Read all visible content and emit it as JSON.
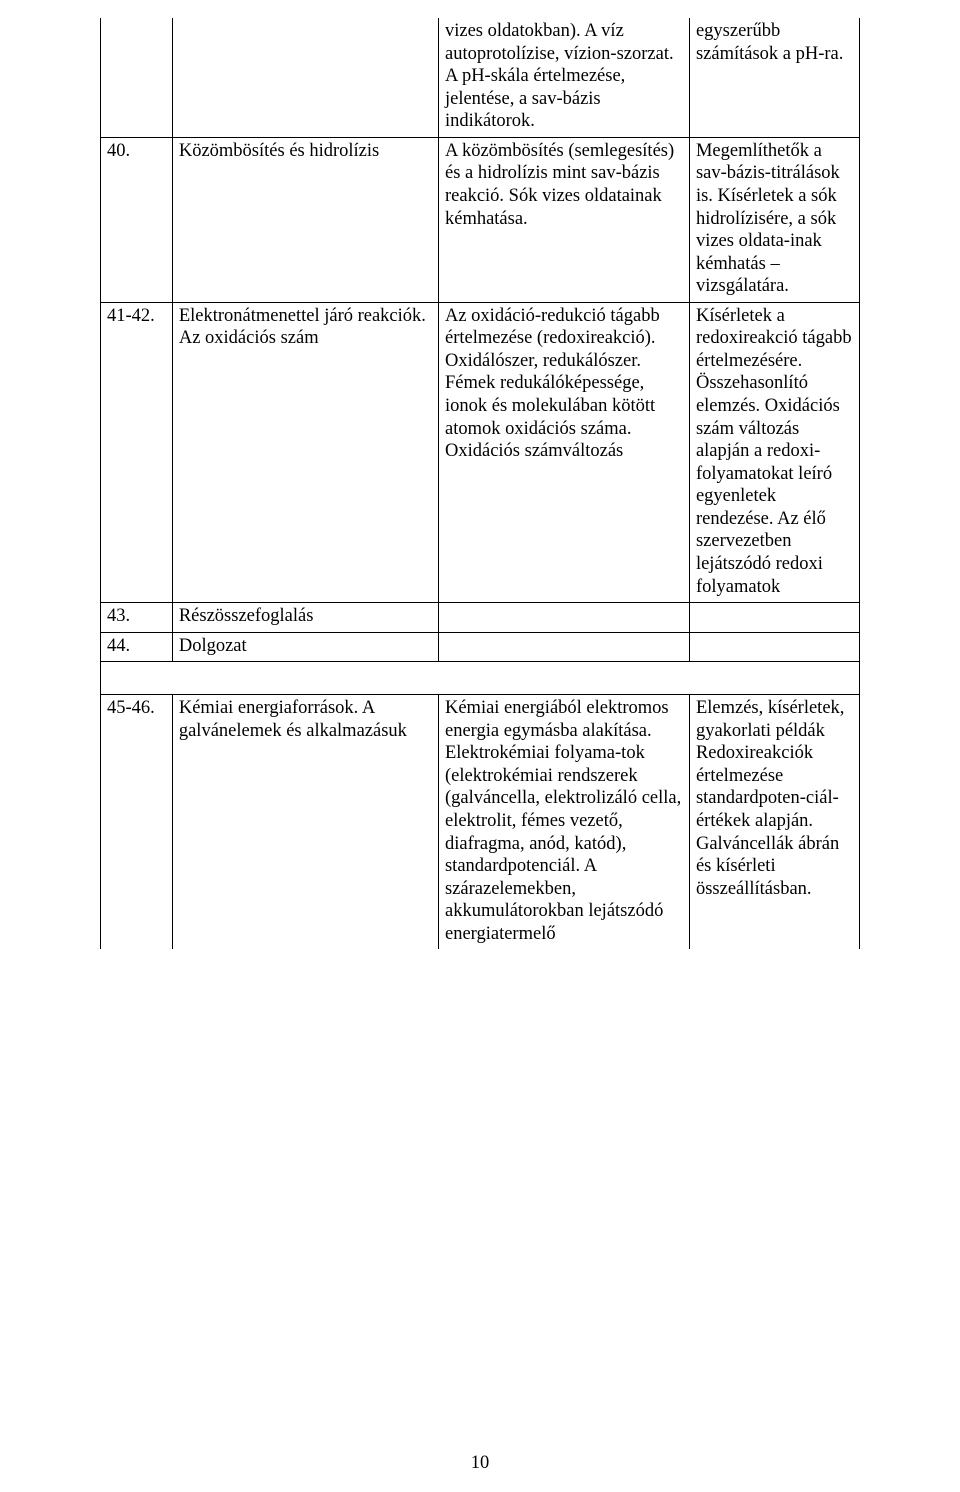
{
  "rows": {
    "r0": {
      "num": "",
      "topic": "",
      "desc": "vizes oldatokban). A víz autoprotolízise, vízion-szorzat.\nA pH-skála értelmezése, jelentése, a sav-bázis indikátorok.",
      "notes": "egyszerűbb számítások a pH-ra."
    },
    "r1": {
      "num": "40.",
      "topic": "Közömbösítés és hidrolízis",
      "desc": "A közömbösítés (semlegesítés) és a hidrolízis  mint sav-bázis reakció. Sók vizes oldatainak kémhatása.",
      "notes": "Megemlíthetők a sav-bázis-titrálások is. Kísérletek a sók hidrolízisére, a sók vizes oldata-inak kémhatás – vizsgálatára."
    },
    "r2": {
      "num": "41-42.",
      "topic": "Elektronátmenettel járó reakciók. Az oxidációs szám",
      "desc": "Az oxidáció-redukció tágabb értelmezése (redoxireakció). Oxidálószer, redukálószer. Fémek redukálóképessége, ionok és molekulában kötött atomok oxidációs száma. Oxidációs számváltozás",
      "notes": "Kísérletek a redoxireakció tágabb értelmezésére. Összehasonlító elemzés. Oxidációs szám változás alapján a redoxi-folyamatokat leíró egyenletek rendezése. Az élő szervezetben lejátszódó redoxi folyamatok"
    },
    "r3": {
      "num": "43.",
      "topic": "Részösszefoglalás",
      "desc": "",
      "notes": ""
    },
    "r4": {
      "num": "44.",
      "topic": "Dolgozat",
      "desc": "",
      "notes": ""
    },
    "r5": {
      "num": "45-46.",
      "topic": "Kémiai energiaforrások. A galvánelemek és alkalmazásuk",
      "desc": "Kémiai energiából elektromos energia egymásba alakítása. Elektrokémiai folyama-tok (elektrokémiai rendszerek (galváncella, elektrolizáló cella, elektrolit, fémes vezető, diafragma, anód, katód), standardpotenciál.\nA szárazelemekben, akkumulátorokban lejátszódó energiatermelő",
      "notes": "Elemzés, kísérletek, gyakorlati példák Redoxireakciók értelmezése standardpoten-ciál-értékek alapján. Galváncellák ábrán és kísérleti összeállításban."
    }
  },
  "page_number": "10"
}
